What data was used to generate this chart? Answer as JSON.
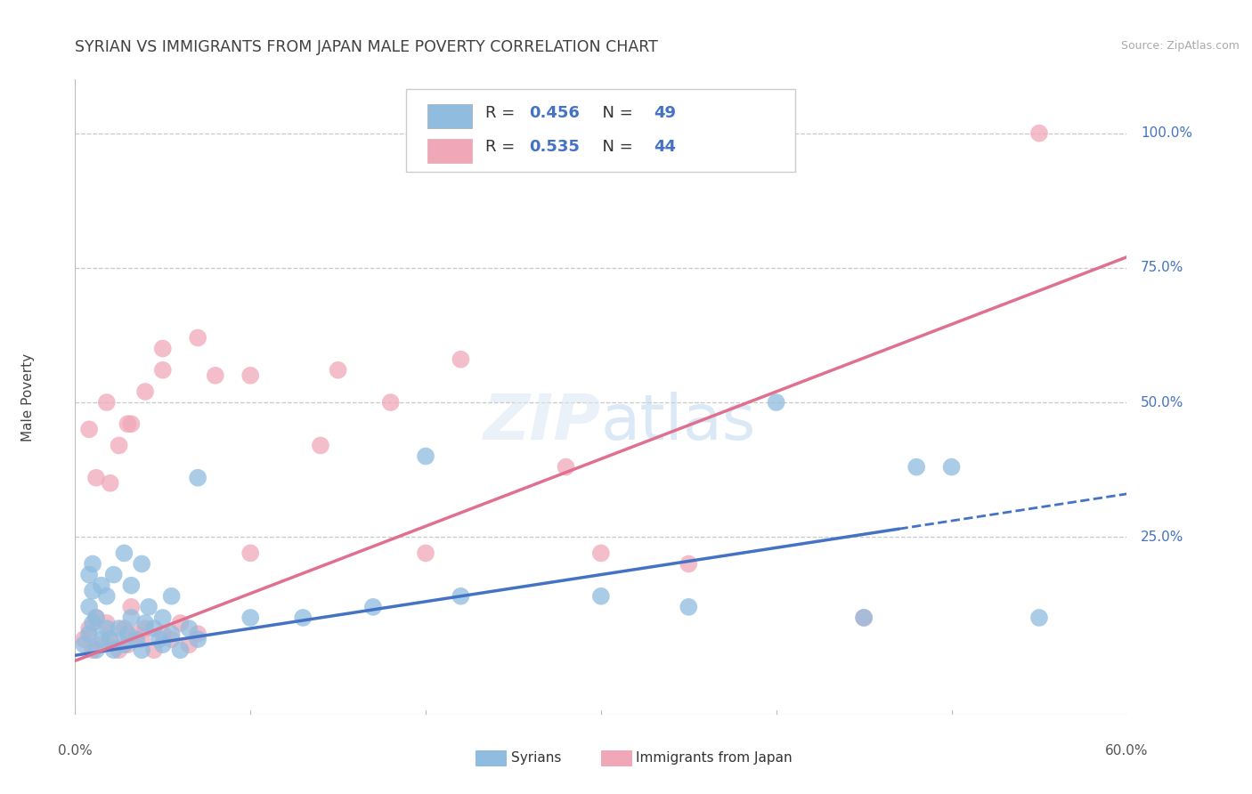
{
  "title": "SYRIAN VS IMMIGRANTS FROM JAPAN MALE POVERTY CORRELATION CHART",
  "source": "Source: ZipAtlas.com",
  "ylabel": "Male Poverty",
  "ytick_labels": [
    "100.0%",
    "75.0%",
    "50.0%",
    "25.0%"
  ],
  "ytick_values": [
    1.0,
    0.75,
    0.5,
    0.25
  ],
  "xmin": 0.0,
  "xmax": 0.6,
  "ymin": -0.08,
  "ymax": 1.1,
  "syrians_color": "#8fbcdf",
  "japan_color": "#f0a8b8",
  "trend_syrian_color": "#4472c4",
  "trend_japan_color": "#e07090",
  "background_color": "#ffffff",
  "grid_color": "#c8c8c8",
  "title_color": "#404040",
  "source_color": "#aaaaaa",
  "legend_R1": "0.456",
  "legend_N1": "49",
  "legend_R2": "0.535",
  "legend_N2": "44",
  "syrians_x": [
    0.005,
    0.008,
    0.01,
    0.012,
    0.015,
    0.008,
    0.01,
    0.012,
    0.018,
    0.02,
    0.022,
    0.025,
    0.028,
    0.03,
    0.032,
    0.035,
    0.038,
    0.04,
    0.042,
    0.045,
    0.048,
    0.05,
    0.055,
    0.06,
    0.065,
    0.07,
    0.008,
    0.01,
    0.015,
    0.018,
    0.022,
    0.028,
    0.032,
    0.038,
    0.05,
    0.055,
    0.07,
    0.1,
    0.13,
    0.17,
    0.22,
    0.3,
    0.35,
    0.4,
    0.45,
    0.48,
    0.5,
    0.55,
    0.2
  ],
  "syrians_y": [
    0.05,
    0.07,
    0.09,
    0.04,
    0.06,
    0.12,
    0.15,
    0.1,
    0.08,
    0.06,
    0.04,
    0.08,
    0.05,
    0.07,
    0.1,
    0.06,
    0.04,
    0.09,
    0.12,
    0.08,
    0.06,
    0.05,
    0.07,
    0.04,
    0.08,
    0.06,
    0.18,
    0.2,
    0.16,
    0.14,
    0.18,
    0.22,
    0.16,
    0.2,
    0.1,
    0.14,
    0.36,
    0.1,
    0.1,
    0.12,
    0.14,
    0.14,
    0.12,
    0.5,
    0.1,
    0.38,
    0.38,
    0.1,
    0.4
  ],
  "japan_x": [
    0.005,
    0.008,
    0.01,
    0.012,
    0.015,
    0.018,
    0.02,
    0.025,
    0.028,
    0.03,
    0.032,
    0.035,
    0.038,
    0.04,
    0.045,
    0.05,
    0.055,
    0.06,
    0.065,
    0.07,
    0.008,
    0.012,
    0.018,
    0.025,
    0.032,
    0.04,
    0.05,
    0.07,
    0.1,
    0.15,
    0.18,
    0.22,
    0.3,
    0.35,
    0.1,
    0.2,
    0.28,
    0.14,
    0.08,
    0.05,
    0.03,
    0.02,
    0.55,
    0.45
  ],
  "japan_y": [
    0.06,
    0.08,
    0.04,
    0.1,
    0.05,
    0.09,
    0.06,
    0.04,
    0.08,
    0.05,
    0.12,
    0.07,
    0.06,
    0.08,
    0.04,
    0.07,
    0.06,
    0.09,
    0.05,
    0.07,
    0.45,
    0.36,
    0.5,
    0.42,
    0.46,
    0.52,
    0.56,
    0.62,
    0.55,
    0.56,
    0.5,
    0.58,
    0.22,
    0.2,
    0.22,
    0.22,
    0.38,
    0.42,
    0.55,
    0.6,
    0.46,
    0.35,
    1.0,
    0.1
  ],
  "trend_syrian_slope": 0.5,
  "trend_syrian_intercept": 0.03,
  "trend_japan_slope": 1.25,
  "trend_japan_intercept": 0.02,
  "trend_syrian_solid_end": 0.47,
  "trend_syrian_dashed_end": 0.6
}
